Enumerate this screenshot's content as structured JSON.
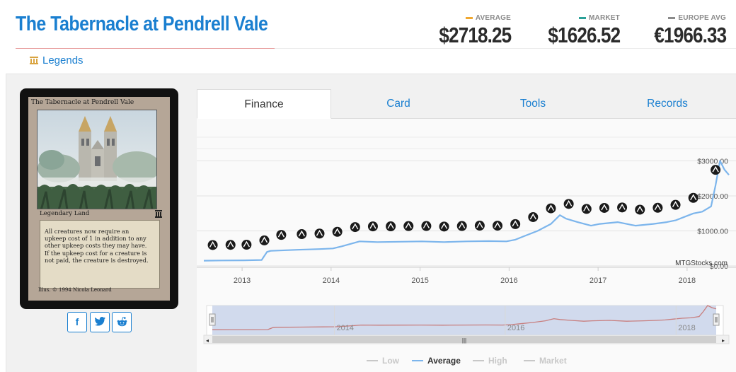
{
  "header": {
    "title": "The Tabernacle at Pendrell Vale",
    "prices": [
      {
        "label": "AVERAGE",
        "value": "$2718.25",
        "color": "#f0a830"
      },
      {
        "label": "MARKET",
        "value": "$1626.52",
        "color": "#2aa198"
      },
      {
        "label": "EUROPE AVG",
        "value": "€1966.33",
        "color": "#8a8a8a"
      }
    ],
    "legends_link": "Legends"
  },
  "card": {
    "name": "The Tabernacle at Pendrell Vale",
    "type_line": "Legendary Land",
    "rules_text": [
      "All creatures now require an",
      "upkeep cost of 1 in addition to any",
      "other upkeep costs they may have.",
      "If the upkeep cost for a creature is",
      "not paid, the creature is destroyed."
    ],
    "credit": "Illus. © 1994 Nicola Leonard"
  },
  "share_buttons": [
    {
      "name": "facebook",
      "glyph": "f"
    },
    {
      "name": "twitter",
      "glyph": "t"
    },
    {
      "name": "reddit",
      "glyph": "r"
    }
  ],
  "tabs": [
    {
      "label": "Finance",
      "active": true
    },
    {
      "label": "Card",
      "active": false
    },
    {
      "label": "Tools",
      "active": false
    },
    {
      "label": "Records",
      "active": false
    }
  ],
  "chart_data": {
    "type": "line",
    "xlabel": "",
    "ylabel": "",
    "x_ticks": [
      "2013",
      "2014",
      "2015",
      "2016",
      "2017",
      "2018"
    ],
    "y_ticks": [
      "$0.00",
      "$1000.00",
      "$2000.00",
      "$3000.00"
    ],
    "ylim": [
      0,
      3500
    ],
    "grid": true,
    "watermark": "MTGStocks.com",
    "series": [
      {
        "name": "Average",
        "color": "#7cb5ec",
        "x": [
          2012.55,
          2012.75,
          2013.0,
          2013.2,
          2013.26,
          2013.3,
          2013.6,
          2013.85,
          2014.0,
          2014.1,
          2014.3,
          2014.5,
          2014.75,
          2015.0,
          2015.25,
          2015.5,
          2015.75,
          2015.95,
          2016.05,
          2016.15,
          2016.3,
          2016.45,
          2016.55,
          2016.62,
          2016.75,
          2016.9,
          2017.0,
          2017.2,
          2017.4,
          2017.6,
          2017.75,
          2017.85,
          2017.95,
          2018.05,
          2018.15,
          2018.25,
          2018.3,
          2018.35,
          2018.4,
          2018.45
        ],
        "values": [
          150,
          155,
          160,
          170,
          400,
          430,
          460,
          480,
          500,
          560,
          700,
          680,
          690,
          700,
          680,
          700,
          710,
          700,
          750,
          850,
          1000,
          1200,
          1450,
          1350,
          1250,
          1150,
          1200,
          1250,
          1150,
          1200,
          1250,
          1300,
          1400,
          1500,
          1550,
          1700,
          2300,
          3000,
          2750,
          2600
        ]
      }
    ],
    "legend": {
      "position": "bottom",
      "items": [
        {
          "label": "Low",
          "color": "#c8c8c8",
          "active": false
        },
        {
          "label": "Average",
          "color": "#7cb5ec",
          "active": true
        },
        {
          "label": "High",
          "color": "#c8c8c8",
          "active": false
        },
        {
          "label": "Market",
          "color": "#c8c8c8",
          "active": false
        }
      ]
    },
    "navigator": {
      "x_ticks": [
        "2014",
        "2016",
        "2018"
      ],
      "scrollbar_glyph": "|||"
    }
  }
}
